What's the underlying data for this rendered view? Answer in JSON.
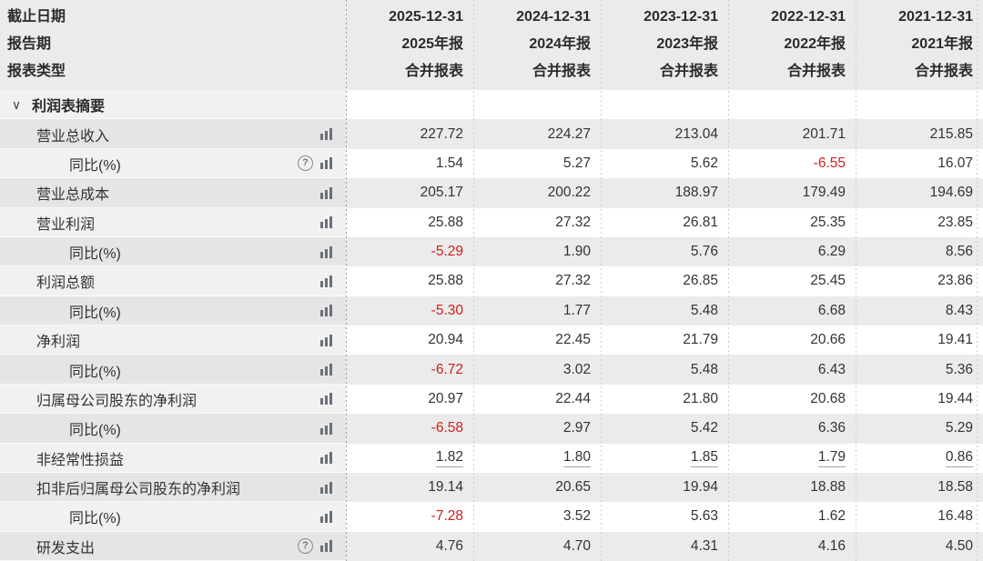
{
  "header": {
    "row_labels": [
      "截止日期",
      "报告期",
      "报表类型"
    ],
    "columns": [
      {
        "date": "2025-12-31",
        "period": "2025年报",
        "type": "合并报表"
      },
      {
        "date": "2024-12-31",
        "period": "2024年报",
        "type": "合并报表"
      },
      {
        "date": "2023-12-31",
        "period": "2023年报",
        "type": "合并报表"
      },
      {
        "date": "2022-12-31",
        "period": "2022年报",
        "type": "合并报表"
      },
      {
        "date": "2021-12-31",
        "period": "2021年报",
        "type": "合并报表"
      }
    ]
  },
  "section": {
    "title": "利润表摘要"
  },
  "rows": [
    {
      "label": "营业总收入",
      "indent": 1,
      "help": false,
      "chart": true,
      "underline": false,
      "values": [
        "227.72",
        "224.27",
        "213.04",
        "201.71",
        "215.85"
      ]
    },
    {
      "label": "同比(%)",
      "indent": 2,
      "help": true,
      "chart": true,
      "underline": false,
      "values": [
        "1.54",
        "5.27",
        "5.62",
        "-6.55",
        "16.07"
      ]
    },
    {
      "label": "营业总成本",
      "indent": 1,
      "help": false,
      "chart": true,
      "underline": false,
      "values": [
        "205.17",
        "200.22",
        "188.97",
        "179.49",
        "194.69"
      ]
    },
    {
      "label": "营业利润",
      "indent": 1,
      "help": false,
      "chart": true,
      "underline": false,
      "values": [
        "25.88",
        "27.32",
        "26.81",
        "25.35",
        "23.85"
      ]
    },
    {
      "label": "同比(%)",
      "indent": 2,
      "help": false,
      "chart": true,
      "underline": false,
      "values": [
        "-5.29",
        "1.90",
        "5.76",
        "6.29",
        "8.56"
      ]
    },
    {
      "label": "利润总额",
      "indent": 1,
      "help": false,
      "chart": true,
      "underline": false,
      "values": [
        "25.88",
        "27.32",
        "26.85",
        "25.45",
        "23.86"
      ]
    },
    {
      "label": "同比(%)",
      "indent": 2,
      "help": false,
      "chart": true,
      "underline": false,
      "values": [
        "-5.30",
        "1.77",
        "5.48",
        "6.68",
        "8.43"
      ]
    },
    {
      "label": "净利润",
      "indent": 1,
      "help": false,
      "chart": true,
      "underline": false,
      "values": [
        "20.94",
        "22.45",
        "21.79",
        "20.66",
        "19.41"
      ]
    },
    {
      "label": "同比(%)",
      "indent": 2,
      "help": false,
      "chart": true,
      "underline": false,
      "values": [
        "-6.72",
        "3.02",
        "5.48",
        "6.43",
        "5.36"
      ]
    },
    {
      "label": "归属母公司股东的净利润",
      "indent": 1,
      "help": false,
      "chart": true,
      "underline": false,
      "values": [
        "20.97",
        "22.44",
        "21.80",
        "20.68",
        "19.44"
      ]
    },
    {
      "label": "同比(%)",
      "indent": 2,
      "help": false,
      "chart": true,
      "underline": false,
      "values": [
        "-6.58",
        "2.97",
        "5.42",
        "6.36",
        "5.29"
      ]
    },
    {
      "label": "非经常性损益",
      "indent": 1,
      "help": false,
      "chart": true,
      "underline": true,
      "values": [
        "1.82",
        "1.80",
        "1.85",
        "1.79",
        "0.86"
      ]
    },
    {
      "label": "扣非后归属母公司股东的净利润",
      "indent": 1,
      "help": false,
      "chart": true,
      "underline": false,
      "values": [
        "19.14",
        "20.65",
        "19.94",
        "18.88",
        "18.58"
      ]
    },
    {
      "label": "同比(%)",
      "indent": 2,
      "help": false,
      "chart": true,
      "underline": false,
      "values": [
        "-7.28",
        "3.52",
        "5.63",
        "1.62",
        "16.48"
      ]
    },
    {
      "label": "研发支出",
      "indent": 1,
      "help": true,
      "chart": true,
      "underline": false,
      "values": [
        "4.76",
        "4.70",
        "4.31",
        "4.16",
        "4.50"
      ]
    }
  ],
  "colors": {
    "negative": "#d21e1e",
    "header_bg": "#ebebeb",
    "shade_bg": "#ebebeb",
    "label_shade_bg": "#e5e5e5"
  }
}
